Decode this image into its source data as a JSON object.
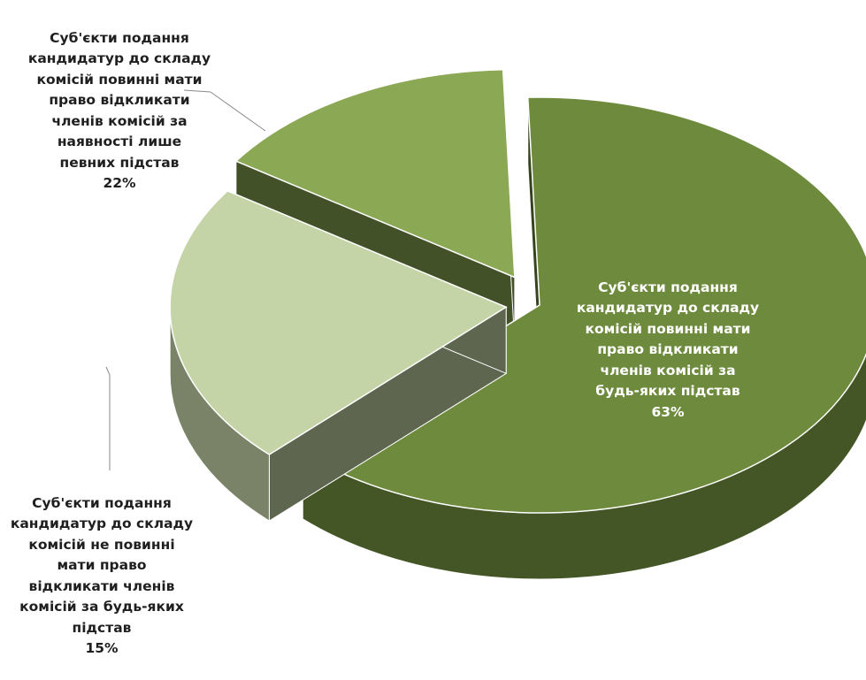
{
  "chart_data": {
    "type": "pie",
    "style": "3d-exploded",
    "slices": [
      {
        "label": "Суб'єкти подання\nкандидатур до складу\nкомісій повинні мати\nправо відкликати\nчленів комісій за\nбудь-яких підстав",
        "value": 63,
        "value_label": "63%",
        "color": "#6e8b3d"
      },
      {
        "label": "Суб'єкти подання\nкандидатур до складу\nкомісій повинні мати\nправо відкликати\nчленів комісій за\nнаявності лише\nпевних підстав",
        "value": 22,
        "value_label": "22%",
        "color": "#c4d4a6"
      },
      {
        "label": "Суб'єкти подання\nкандидатур до складу\nкомісій не повинні\nмати право\nвідкликати членів\nкомісій за будь-яких\nпідстав",
        "value": 15,
        "value_label": "15%",
        "color": "#8ba855"
      }
    ]
  }
}
